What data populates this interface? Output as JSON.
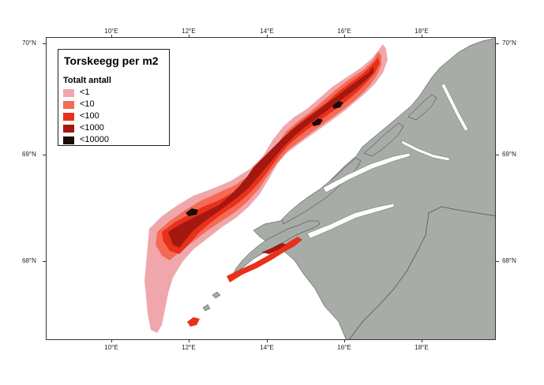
{
  "map": {
    "title": "Torskeegg per m2",
    "legend_subtitle": "Totalt antall",
    "legend": [
      {
        "label": "<1",
        "color": "#f0a7ac"
      },
      {
        "label": "<10",
        "color": "#f46a55"
      },
      {
        "label": "<100",
        "color": "#e8301b"
      },
      {
        "label": "<1000",
        "color": "#a4180f"
      },
      {
        "label": "<10000",
        "color": "#1a0a08"
      }
    ],
    "colors": {
      "land": "#a7aca7",
      "border": "#555555",
      "sea": "#ffffff"
    },
    "x_axis_ticks": [
      "10°E",
      "12°E",
      "14°E",
      "16°E",
      "18°E"
    ],
    "y_axis_ticks": [
      "70°N",
      "69°N",
      "68°N"
    ]
  }
}
